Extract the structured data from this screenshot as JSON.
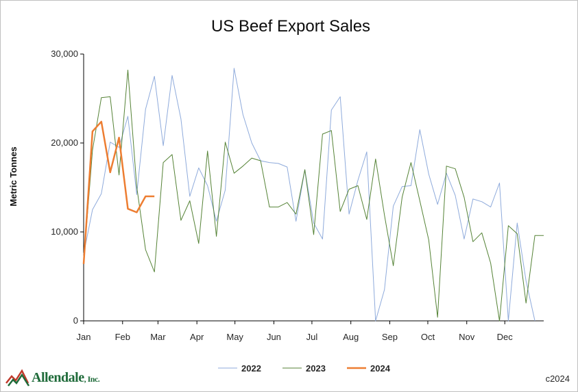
{
  "colors": {
    "s2022": "#8eaadb",
    "s2023": "#548235",
    "s2024": "#ed7d31",
    "axis": "#000000",
    "logo": "#1f6b3a",
    "logo_accent": "#c0392b"
  },
  "logo": {
    "name": "Allendale",
    "suffix": ", Inc."
  },
  "copyright": "c2024",
  "chart_data": {
    "type": "line",
    "title": "US Beef Export Sales",
    "xlabel": "",
    "ylabel": "Metric Tonnes",
    "ylim": [
      0,
      30000
    ],
    "yticks": [
      {
        "value": 0,
        "label": "0"
      },
      {
        "value": 10000,
        "label": "10,000"
      },
      {
        "value": 20000,
        "label": "20,000"
      },
      {
        "value": 30000,
        "label": "30,000"
      }
    ],
    "xlim": [
      1,
      53
    ],
    "xunit": "week",
    "xticks": [
      {
        "week": 1,
        "label": "Jan"
      },
      {
        "week": 5.4,
        "label": "Feb"
      },
      {
        "week": 9.4,
        "label": "Mar"
      },
      {
        "week": 13.8,
        "label": "Apr"
      },
      {
        "week": 18.1,
        "label": "May"
      },
      {
        "week": 22.5,
        "label": "Jun"
      },
      {
        "week": 26.8,
        "label": "Jul"
      },
      {
        "week": 31.2,
        "label": "Aug"
      },
      {
        "week": 35.6,
        "label": "Sep"
      },
      {
        "week": 39.9,
        "label": "Oct"
      },
      {
        "week": 44.3,
        "label": "Nov"
      },
      {
        "week": 48.6,
        "label": "Dec"
      }
    ],
    "grid": false,
    "legend_position": "bottom",
    "series": [
      {
        "name": "2022",
        "color_key": "s2022",
        "width": 1,
        "x": [
          1,
          2,
          3,
          4,
          5,
          6,
          7,
          8,
          9,
          10,
          11,
          12,
          13,
          14,
          15,
          16,
          17,
          18,
          19,
          20,
          21,
          22,
          23,
          24,
          25,
          26,
          27,
          28,
          29,
          30,
          31,
          32,
          33,
          34,
          35,
          36,
          37,
          38,
          39,
          40,
          41,
          42,
          43,
          44,
          45,
          46,
          47,
          48,
          49,
          50,
          51,
          52
        ],
        "values": [
          7500,
          12500,
          14300,
          20100,
          19500,
          23000,
          14200,
          23800,
          27500,
          19700,
          27600,
          22700,
          14000,
          17200,
          15200,
          11200,
          14700,
          28400,
          23200,
          20000,
          18000,
          17800,
          17700,
          17300,
          11200,
          17000,
          11000,
          9200,
          23700,
          25200,
          12000,
          15800,
          19000,
          0,
          3500,
          12900,
          15100,
          15200,
          21500,
          16500,
          13100,
          16600,
          14100,
          9200,
          13700,
          13400,
          12800,
          15500,
          0,
          11000,
          4500,
          0
        ]
      },
      {
        "name": "2023",
        "color_key": "s2023",
        "width": 1,
        "x": [
          1,
          2,
          3,
          4,
          5,
          6,
          7,
          8,
          9,
          10,
          11,
          12,
          13,
          14,
          15,
          16,
          17,
          18,
          19,
          20,
          21,
          22,
          23,
          24,
          25,
          26,
          27,
          28,
          29,
          30,
          31,
          32,
          33,
          34,
          35,
          36,
          37,
          38,
          39,
          40,
          41,
          42,
          43,
          44,
          45,
          46,
          47,
          48,
          49,
          50,
          51,
          52,
          53
        ],
        "values": [
          6500,
          19200,
          25100,
          25200,
          16400,
          28200,
          15100,
          8000,
          5500,
          17800,
          18700,
          11300,
          13500,
          8700,
          19100,
          9500,
          20100,
          16600,
          17400,
          18300,
          18000,
          12800,
          12800,
          13300,
          12000,
          17000,
          9700,
          21000,
          21400,
          12300,
          14800,
          15200,
          11400,
          18200,
          11900,
          6200,
          13900,
          17800,
          13500,
          9100,
          400,
          17400,
          17100,
          13900,
          8900,
          9900,
          6500,
          0,
          10700,
          9800,
          2000,
          9600,
          9600
        ]
      },
      {
        "name": "2024",
        "color_key": "s2024",
        "width": 2.5,
        "x": [
          1,
          2,
          3,
          4,
          5,
          6,
          7,
          8,
          9
        ],
        "values": [
          6400,
          21300,
          22400,
          16700,
          20600,
          12600,
          12200,
          14000,
          14000
        ]
      }
    ]
  }
}
